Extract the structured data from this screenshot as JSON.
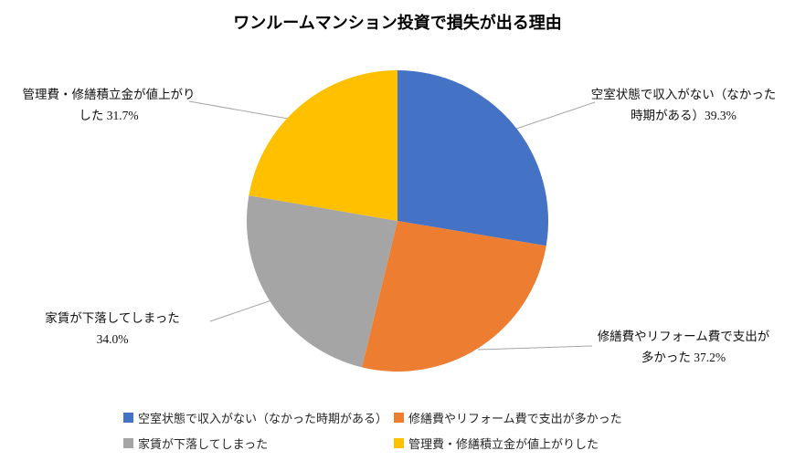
{
  "page": {
    "background": "#ffffff"
  },
  "title": "ワンルームマンション投資で損失が出る理由",
  "chart_data": {
    "type": "pie",
    "title": "ワンルームマンション投資で損失が出る理由",
    "categories": [
      "空室状態で収入がない（なかった時期がある）",
      "修繕費やリフォーム費で支出が多かった",
      "家賃が下落してしまった",
      "管理費・修繕積立金が値上がりした"
    ],
    "values": [
      39.3,
      37.2,
      34.0,
      31.7
    ],
    "value_unit": "%",
    "colors": [
      "#4472C4",
      "#ED7D31",
      "#A5A5A5",
      "#FFC000"
    ],
    "start_angle": 0,
    "direction": "clockwise",
    "legend_position": "bottom",
    "data_labels": [
      "空室状態で収入がない（なかった時期がある）39.3%",
      "修繕費やリフォーム費で支出が多かった 37.2%",
      "家賃が下落してしまった 34.0%",
      "管理費・修繕積立金が値上がりした 31.7%"
    ]
  },
  "labels": [
    {
      "name": "vacancy",
      "lines": [
        "空室状態で収入がない（なかった",
        "時期がある）39.3%"
      ]
    },
    {
      "name": "repair",
      "lines": [
        "修繕費やリフォーム費で支出が",
        "多かった 37.2%"
      ]
    },
    {
      "name": "rent",
      "lines": [
        "家賃が下落してしまった",
        "34.0%"
      ]
    },
    {
      "name": "fees",
      "lines": [
        "管理費・修繕積立金が値上がり",
        "した 31.7%"
      ]
    }
  ],
  "legend": [
    {
      "label": "空室状態で収入がない（なかった時期がある）",
      "color": "#4472C4"
    },
    {
      "label": "修繕費やリフォーム費で支出が多かった",
      "color": "#ED7D31"
    },
    {
      "label": "家賃が下落してしまった",
      "color": "#A5A5A5"
    },
    {
      "label": "管理費・修繕積立金が値上がりした",
      "color": "#FFC000"
    }
  ],
  "leader_line_color": "#A6A6A6"
}
